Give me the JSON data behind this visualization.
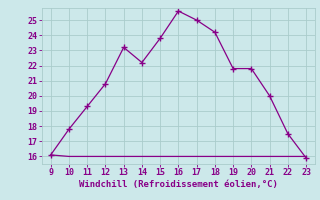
{
  "x": [
    9,
    10,
    11,
    12,
    13,
    14,
    15,
    16,
    17,
    18,
    19,
    20,
    21,
    22,
    23
  ],
  "y_line1": [
    16.1,
    17.8,
    19.3,
    20.8,
    23.2,
    22.2,
    23.8,
    25.6,
    25.0,
    24.2,
    21.8,
    21.8,
    20.0,
    17.5,
    15.9
  ],
  "y_line2": [
    16.1,
    16.0,
    16.0,
    16.0,
    16.0,
    16.0,
    16.0,
    16.0,
    16.0,
    16.0,
    16.0,
    16.0,
    16.0,
    16.0,
    16.0
  ],
  "line_color": "#880088",
  "background_color": "#cce8ea",
  "grid_color": "#aacccc",
  "text_color": "#880088",
  "xlabel": "Windchill (Refroidissement éolien,°C)",
  "xlim": [
    8.5,
    23.5
  ],
  "ylim": [
    15.5,
    25.8
  ],
  "yticks": [
    16,
    17,
    18,
    19,
    20,
    21,
    22,
    23,
    24,
    25
  ],
  "xticks": [
    9,
    10,
    11,
    12,
    13,
    14,
    15,
    16,
    17,
    18,
    19,
    20,
    21,
    22,
    23
  ]
}
